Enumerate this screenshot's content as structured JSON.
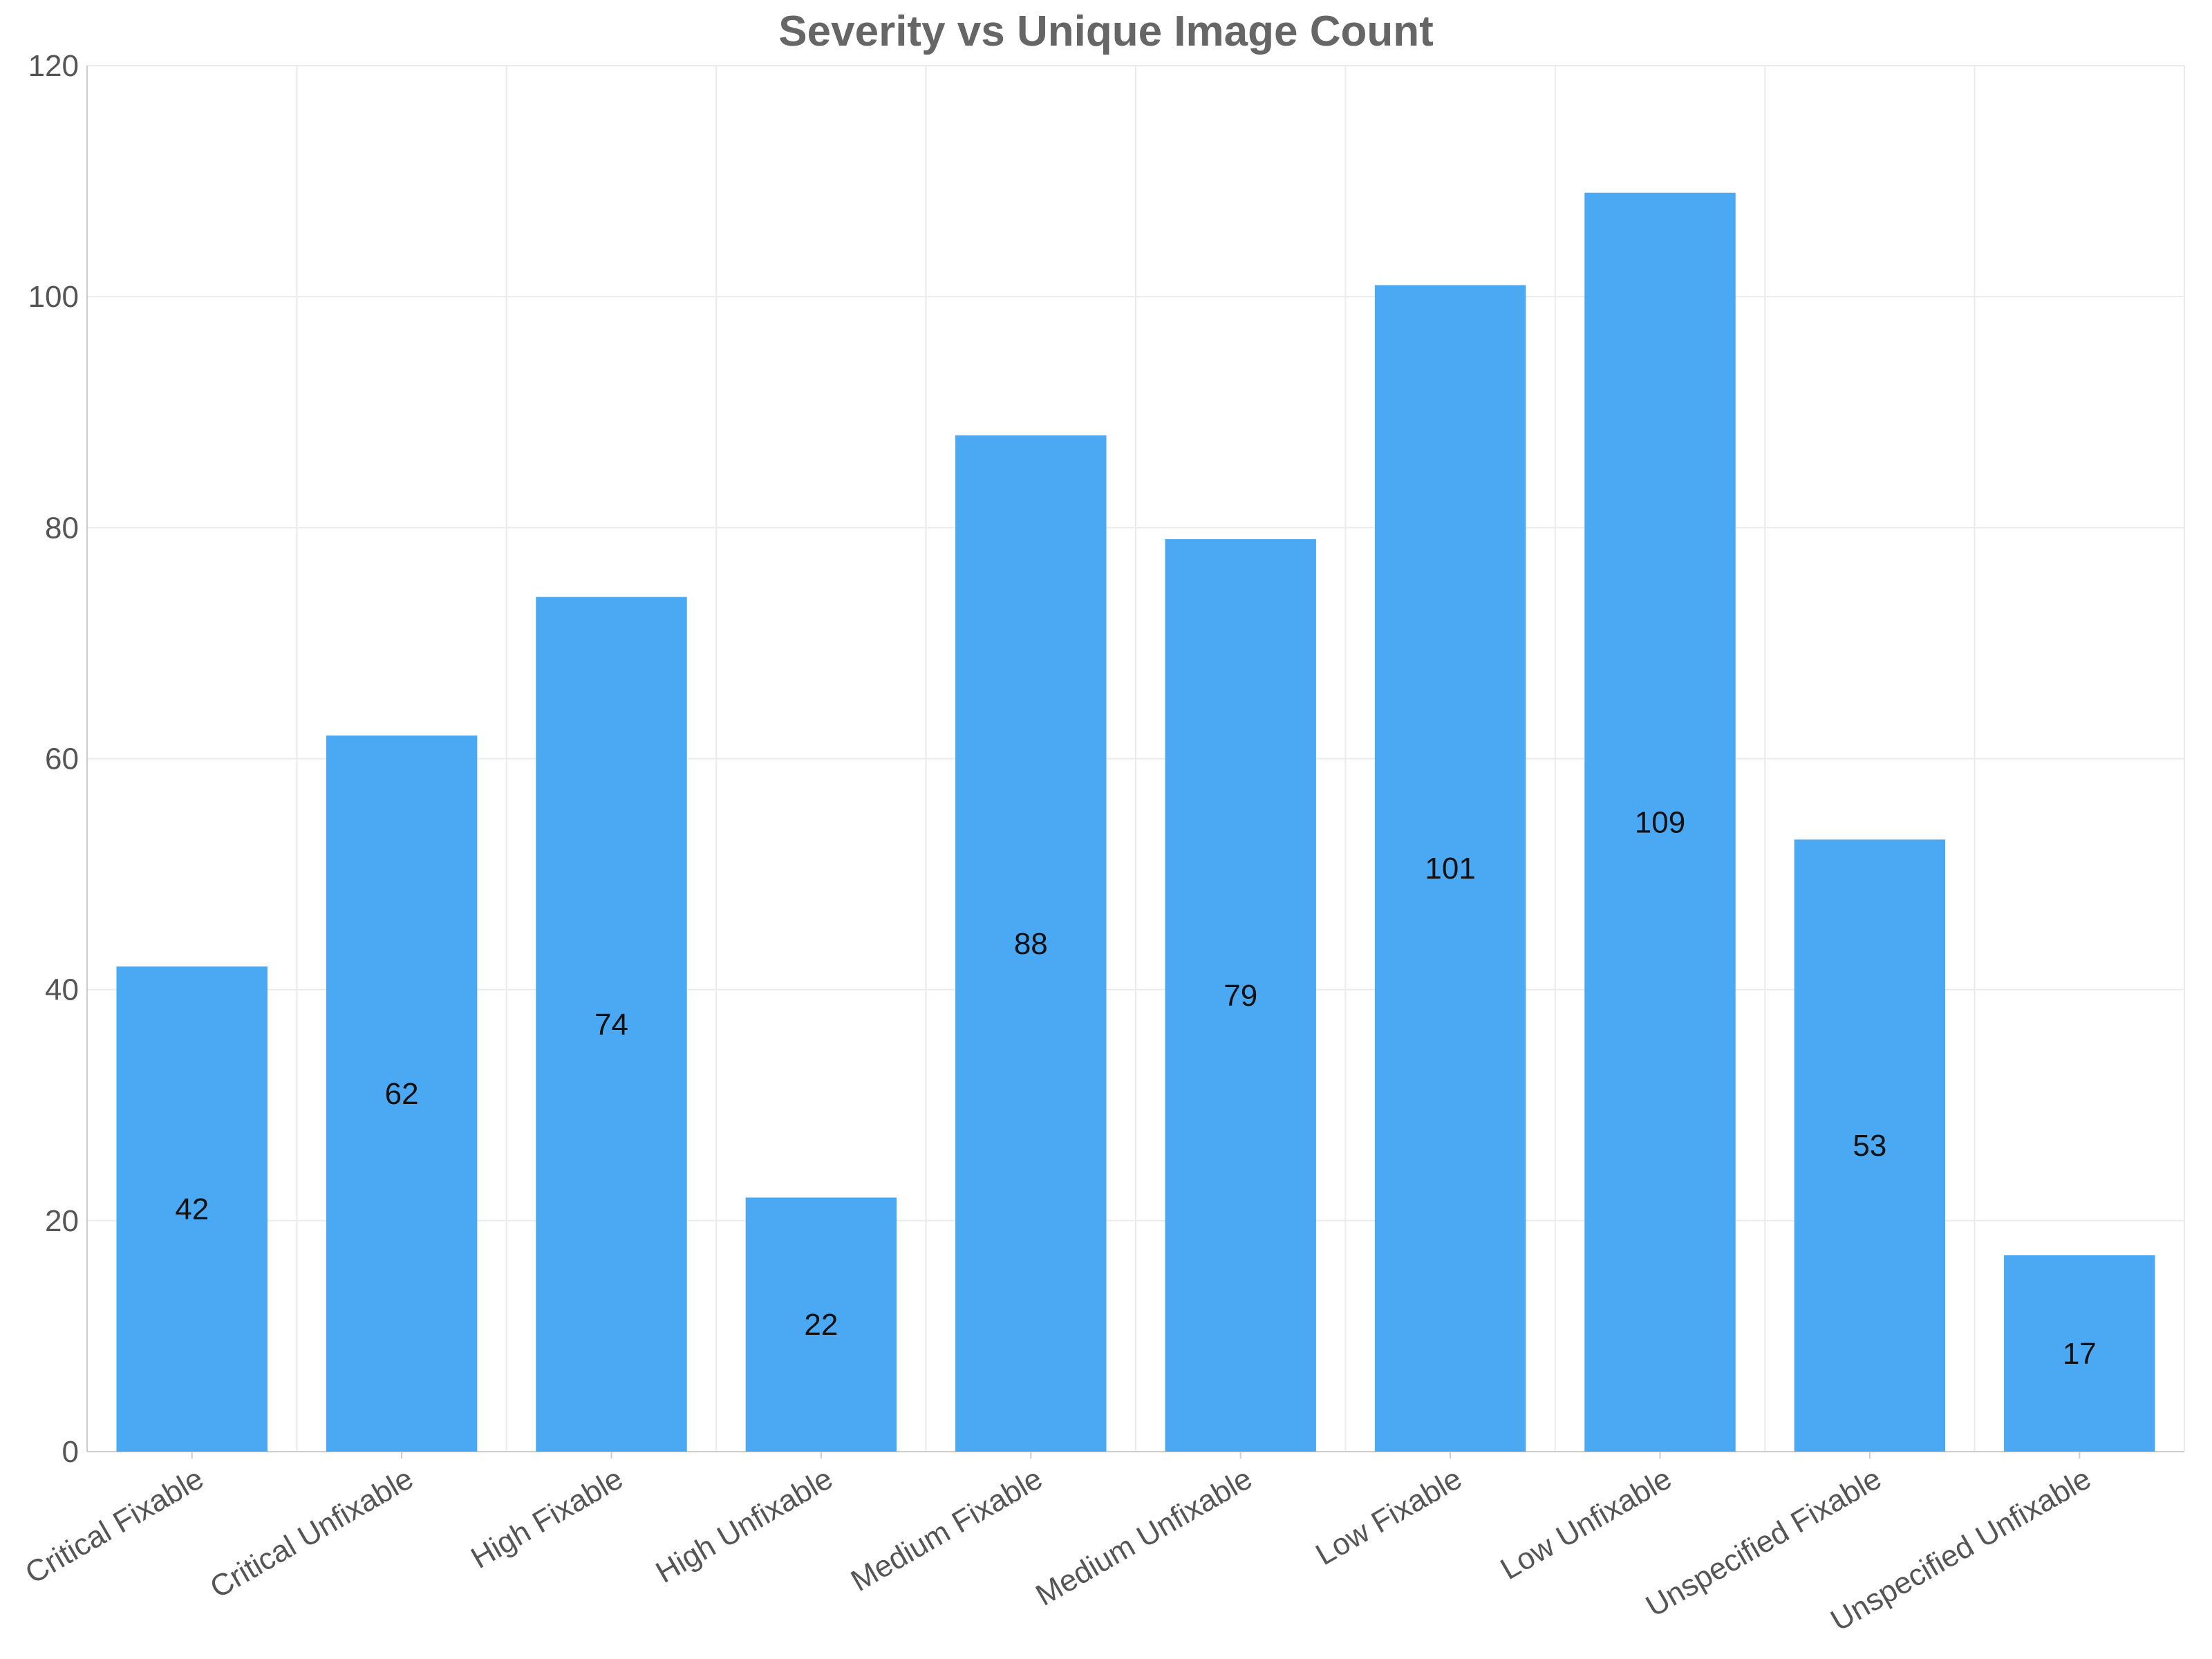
{
  "chart_data": {
    "type": "bar",
    "title": "Severity vs Unique Image Count",
    "xlabel": "",
    "ylabel": "",
    "categories": [
      "Critical Fixable",
      "Critical Unfixable",
      "High Fixable",
      "High Unfixable",
      "Medium Fixable",
      "Medium Unfixable",
      "Low Fixable",
      "Low Unfixable",
      "Unspecified Fixable",
      "Unspecified Unfixable"
    ],
    "values": [
      42,
      62,
      74,
      22,
      88,
      79,
      101,
      109,
      53,
      17
    ],
    "ylim": [
      0,
      120
    ],
    "yticks": [
      0,
      20,
      40,
      60,
      80,
      100,
      120
    ],
    "grid": true,
    "legend": "none",
    "bar_color": "#4BA8F2",
    "value_labels": "inside-center"
  }
}
